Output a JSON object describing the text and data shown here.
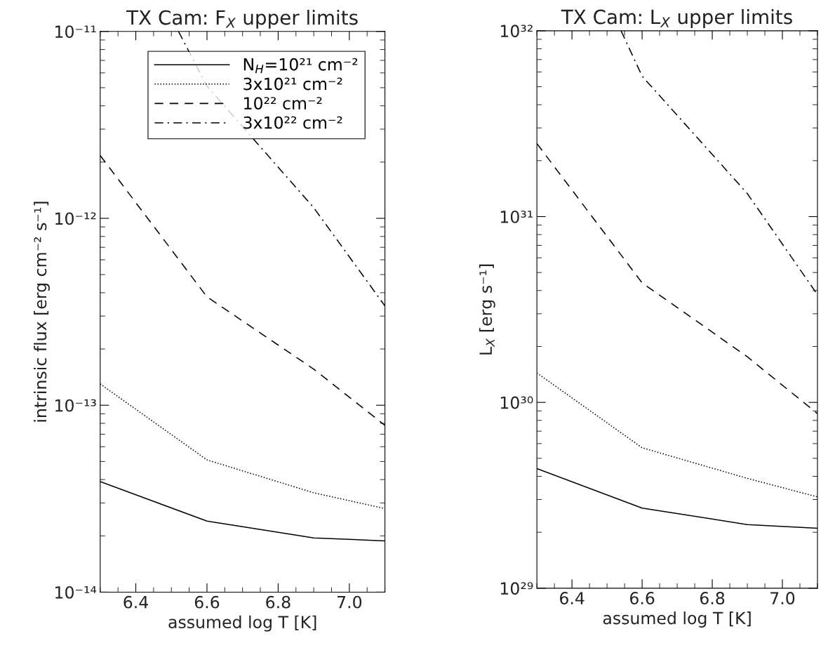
{
  "chart_data": [
    {
      "type": "line",
      "title": "TX Cam: F$_{X}$ upper limits",
      "xlabel": "assumed log T [K]",
      "ylabel": "intrinsic flux [erg cm⁻² s⁻¹]",
      "log": "y",
      "xlim": [
        6.3,
        7.1
      ],
      "xticks": [
        {
          "value": 6.4,
          "label": "6.4"
        },
        {
          "value": 6.6,
          "label": "6.6"
        },
        {
          "value": 6.8,
          "label": "6.8"
        },
        {
          "value": 7.0,
          "label": "7.0"
        }
      ],
      "ylim": [
        1e-14,
        1e-11
      ],
      "yticks": [
        {
          "value": 1e-14,
          "label": "10⁻¹⁴"
        },
        {
          "value": 1e-13,
          "label": "10⁻¹³"
        },
        {
          "value": 1e-12,
          "label": "10⁻¹²"
        },
        {
          "value": 1e-11,
          "label": "10⁻¹¹"
        }
      ],
      "legend": "top right",
      "grid": false,
      "marker": "none",
      "series": [
        {
          "name": "N$_{H}$=10²¹ cm⁻²",
          "color": "#000000",
          "line_style": "solid",
          "x": [
            6.3,
            6.6,
            6.9,
            7.1
          ],
          "values": [
            3.9e-14,
            2.4e-14,
            1.95e-14,
            1.88e-14
          ]
        },
        {
          "name": "3x10²¹ cm⁻²",
          "color": "#000000",
          "line_style": "dotted",
          "x": [
            6.3,
            6.6,
            6.9,
            7.1
          ],
          "values": [
            1.3e-13,
            5.1e-14,
            3.4e-14,
            2.8e-14
          ]
        },
        {
          "name": "10²² cm⁻²",
          "color": "#000000",
          "line_style": "dashed",
          "x": [
            6.3,
            6.6,
            6.9,
            7.1
          ],
          "values": [
            2.17e-12,
            3.8e-13,
            1.56e-13,
            7.8e-14
          ]
        },
        {
          "name": "3x10²² cm⁻²",
          "color": "#000000",
          "line_style": "dashdot",
          "x": [
            6.52,
            6.6,
            6.9,
            7.1
          ],
          "values": [
            1e-11,
            5.1e-12,
            1.14e-12,
            3.4e-13
          ]
        }
      ]
    },
    {
      "type": "line",
      "title": "TX Cam: L$_{X}$ upper limits",
      "xlabel": "assumed log T [K]",
      "ylabel": "L$_{X}$ [erg s⁻¹]",
      "log": "y",
      "xlim": [
        6.3,
        7.1
      ],
      "xticks": [
        {
          "value": 6.4,
          "label": "6.4"
        },
        {
          "value": 6.6,
          "label": "6.6"
        },
        {
          "value": 6.8,
          "label": "6.8"
        },
        {
          "value": 7.0,
          "label": "7.0"
        }
      ],
      "ylim": [
        1e+29,
        1e+32
      ],
      "yticks": [
        {
          "value": 1e+29,
          "label": "10²⁹"
        },
        {
          "value": 1e+30,
          "label": "10³⁰"
        },
        {
          "value": 1e+31,
          "label": "10³¹"
        },
        {
          "value": 1e+32,
          "label": "10³²"
        }
      ],
      "legend": false,
      "grid": false,
      "marker": "none",
      "series": [
        {
          "color": "#000000",
          "line_style": "solid",
          "x": [
            6.3,
            6.6,
            6.9,
            7.1
          ],
          "values": [
            4.4e+29,
            2.7e+29,
            2.2e+29,
            2.1e+29
          ]
        },
        {
          "color": "#000000",
          "line_style": "dotted",
          "x": [
            6.3,
            6.6,
            6.9,
            7.1
          ],
          "values": [
            1.44e+30,
            5.7e+29,
            3.9e+29,
            3.1e+29
          ]
        },
        {
          "color": "#000000",
          "line_style": "dashed",
          "x": [
            6.3,
            6.6,
            6.9,
            7.1
          ],
          "values": [
            2.47e+31,
            4.4e+30,
            1.76e+30,
            8.7e+29
          ]
        },
        {
          "color": "#000000",
          "line_style": "dashdot",
          "x": [
            6.54,
            6.6,
            6.9,
            7.1
          ],
          "values": [
            1e+32,
            5.7e+31,
            1.33e+31,
            3.8e+30
          ]
        }
      ]
    }
  ]
}
